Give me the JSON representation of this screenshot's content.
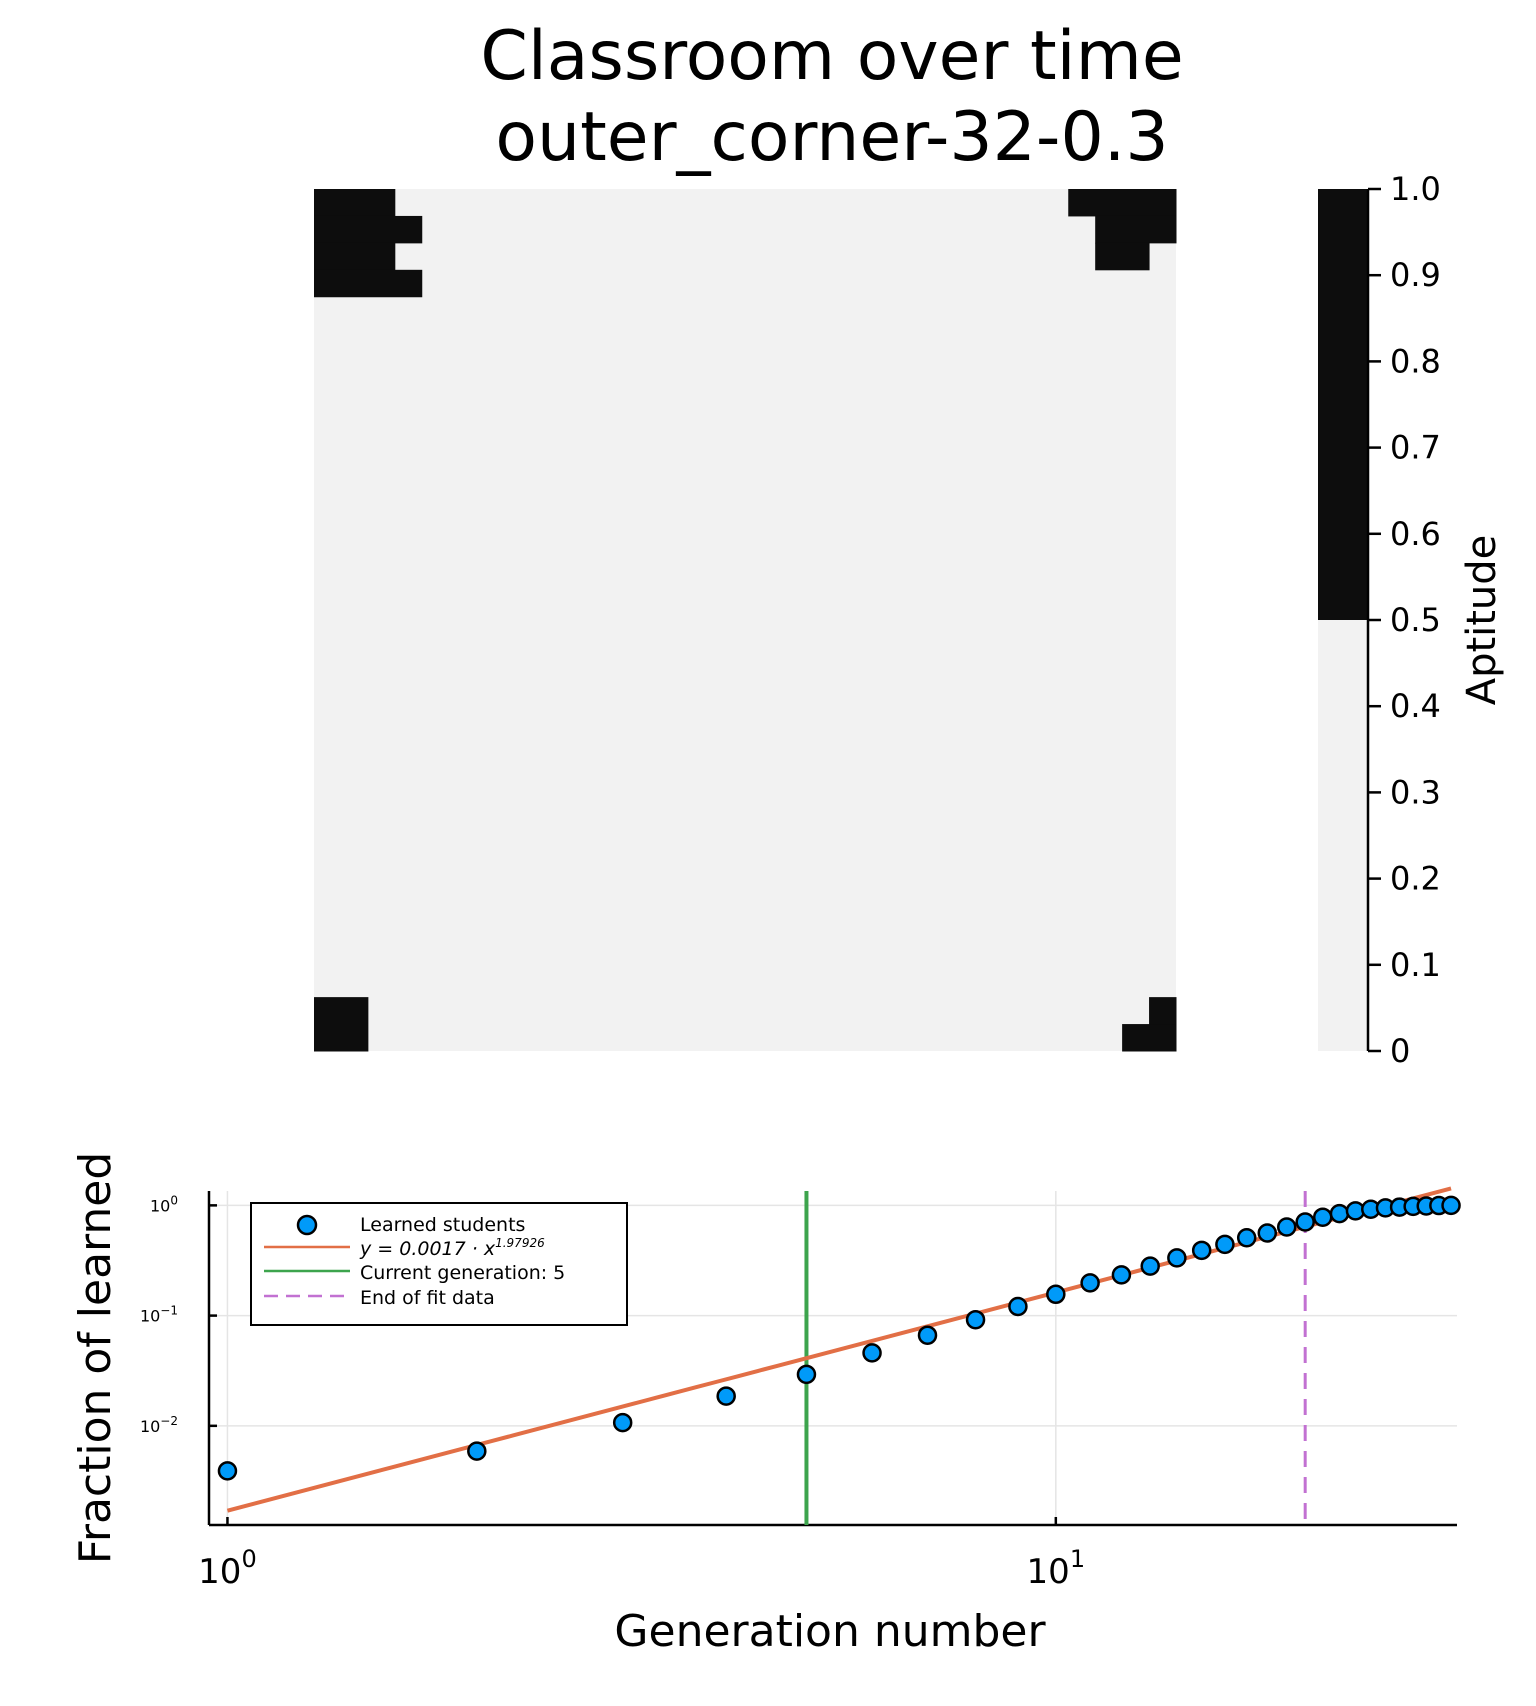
{
  "title_line1": "Classroom over time",
  "title_line2": "outer_corner-32-0.3",
  "chart_data": [
    {
      "type": "heatmap",
      "grid_size": 32,
      "colorbar": {
        "label": "Aptitude",
        "ticks": [
          "0",
          "0.1",
          "0.2",
          "0.3",
          "0.4",
          "0.5",
          "0.6",
          "0.7",
          "0.8",
          "0.9",
          "1.0"
        ],
        "range": [
          0,
          1
        ],
        "colors": [
          "#f2f2f2",
          "#0d0d0d"
        ],
        "threshold": 0.5
      },
      "high_cell_rects": [
        {
          "col0": 0,
          "row0": 0,
          "cols": 3,
          "rows": 1
        },
        {
          "col0": 0,
          "row0": 1,
          "cols": 4,
          "rows": 1
        },
        {
          "col0": 0,
          "row0": 2,
          "cols": 3,
          "rows": 1
        },
        {
          "col0": 0,
          "row0": 3,
          "cols": 4,
          "rows": 1
        },
        {
          "col0": 28,
          "row0": 0,
          "cols": 4,
          "rows": 1
        },
        {
          "col0": 29,
          "row0": 1,
          "cols": 3,
          "rows": 1
        },
        {
          "col0": 29,
          "row0": 2,
          "cols": 2,
          "rows": 1
        },
        {
          "col0": 0,
          "row0": 30,
          "cols": 2,
          "rows": 2
        },
        {
          "col0": 31,
          "row0": 30,
          "cols": 1,
          "rows": 1
        },
        {
          "col0": 30,
          "row0": 31,
          "cols": 2,
          "rows": 1
        }
      ],
      "value_high": 1,
      "value_low": 0
    },
    {
      "type": "scatter",
      "xscale": "log10",
      "yscale": "log10",
      "xlabel": "Generation number",
      "ylabel": "Fraction of learned",
      "xlim": [
        0.95,
        30.5
      ],
      "ylim": [
        0.00126,
        1.35
      ],
      "grid": true,
      "x_ticks": [
        {
          "value": 1,
          "base": "10",
          "exp": "0"
        },
        {
          "value": 10,
          "base": "10",
          "exp": "1"
        }
      ],
      "y_ticks": [
        {
          "value": 1,
          "base": "10",
          "exp": "0"
        },
        {
          "value": 0.1,
          "base": "10",
          "exp": "−1"
        },
        {
          "value": 0.01,
          "base": "10",
          "exp": "−2"
        }
      ],
      "legend_position": "top-left",
      "legend": [
        {
          "label": "Learned students",
          "kind": "marker",
          "color": "#009af9"
        },
        {
          "label": "y = 0.0017 · x",
          "sup": "1.97926",
          "kind": "line",
          "color": "#e26f46"
        },
        {
          "label": "Current generation: 5",
          "kind": "line",
          "color": "#3da44d"
        },
        {
          "label": "End of fit data",
          "kind": "dashed",
          "color": "#c271d2"
        }
      ],
      "series": [
        {
          "name": "Learned students",
          "x": [
            1,
            2,
            3,
            4,
            5,
            6,
            7,
            8,
            9,
            10,
            11,
            12,
            13,
            14,
            15,
            16,
            17,
            18,
            19,
            20,
            21,
            22,
            23,
            24,
            25,
            26,
            27,
            28,
            29,
            30
          ],
          "y": [
            0.0039,
            0.0059,
            0.0107,
            0.0186,
            0.0293,
            0.0459,
            0.0664,
            0.0918,
            0.121,
            0.156,
            0.198,
            0.234,
            0.281,
            0.334,
            0.391,
            0.443,
            0.508,
            0.561,
            0.637,
            0.707,
            0.781,
            0.842,
            0.891,
            0.922,
            0.949,
            0.965,
            0.98,
            0.988,
            0.996,
            1.0
          ]
        }
      ],
      "fit": {
        "a": 0.0017,
        "b": 1.97926,
        "x_range": [
          1,
          30
        ]
      },
      "current_generation": 5,
      "end_of_fit": 20
    }
  ]
}
